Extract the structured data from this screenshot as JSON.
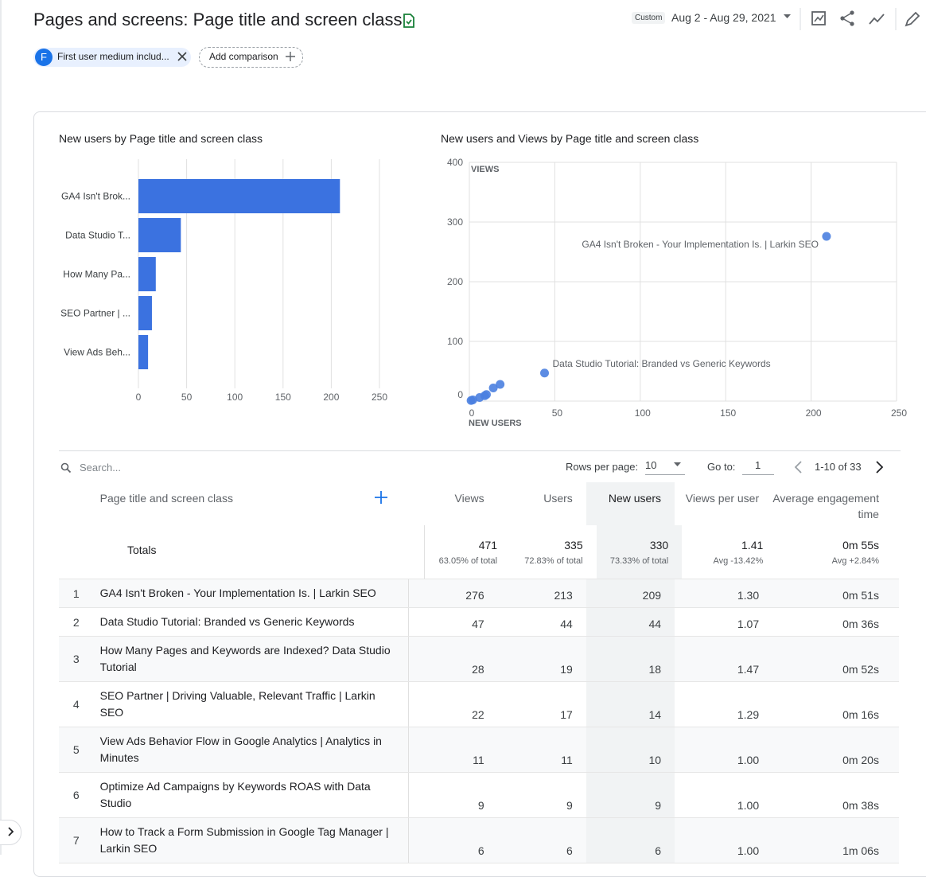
{
  "header": {
    "title": "Pages and screens: Page title and screen class",
    "date_badge": "Custom",
    "date_range": "Aug 2 - Aug 29, 2021",
    "comparison_chip": {
      "initial": "F",
      "label": "First user medium includ..."
    },
    "add_comparison": "Add comparison"
  },
  "chart_data": [
    {
      "type": "bar",
      "orientation": "horizontal",
      "title": "New users by Page title and screen class",
      "categories": [
        "GA4 Isn't Brok...",
        "Data Studio T...",
        "How Many Pa...",
        "SEO Partner | ...",
        "View Ads Beh..."
      ],
      "values": [
        209,
        44,
        18,
        14,
        10
      ],
      "color": "#3b72e0",
      "xlim": [
        0,
        250
      ],
      "xticks": [
        0,
        50,
        100,
        150,
        200,
        250
      ],
      "grid": true
    },
    {
      "type": "scatter",
      "title": "New users and Views by Page title and screen class",
      "x_label": "NEW USERS",
      "y_label": "VIEWS",
      "x": [
        209,
        44,
        18,
        14,
        10,
        9,
        6,
        2,
        1
      ],
      "values": [
        276,
        47,
        28,
        22,
        11,
        9,
        6,
        2,
        1
      ],
      "color": "#4a7fe0",
      "xlim": [
        0,
        250
      ],
      "ylim": [
        0,
        400
      ],
      "xticks": [
        0,
        50,
        100,
        150,
        200,
        250
      ],
      "yticks": [
        0,
        100,
        200,
        300,
        400
      ],
      "grid": true,
      "annotations": [
        {
          "point": 0,
          "text": "GA4 Isn't Broken - Your Implementation Is. | Larkin SEO"
        },
        {
          "point": 1,
          "text": "Data Studio Tutorial: Branded vs Generic Keywords"
        }
      ]
    }
  ],
  "table": {
    "search_placeholder": "Search...",
    "rows_per_page_label": "Rows per page:",
    "rows_per_page": "10",
    "goto_label": "Go to:",
    "goto": "1",
    "page_range": "1-10 of 33",
    "columns": [
      "Page title and screen class",
      "Views",
      "Users",
      "New users",
      "Views per user",
      "Average engagement time"
    ],
    "totals": {
      "label": "Totals",
      "cells": [
        {
          "value": 471,
          "sub": "63.05% of total"
        },
        {
          "value": 335,
          "sub": "72.83% of total"
        },
        {
          "value": 330,
          "sub": "73.33% of total"
        },
        {
          "value": "1.41",
          "sub": "Avg -13.42%"
        },
        {
          "value": "0m 55s",
          "sub": "Avg +2.84%"
        }
      ]
    },
    "rows": [
      [
        1,
        "GA4 Isn't Broken - Your Implementation Is. | Larkin SEO",
        276,
        213,
        209,
        "1.30",
        "0m 51s"
      ],
      [
        2,
        "Data Studio Tutorial: Branded vs Generic Keywords",
        47,
        44,
        44,
        "1.07",
        "0m 36s"
      ],
      [
        3,
        "How Many Pages and Keywords are Indexed? Data Studio Tutorial",
        28,
        19,
        18,
        "1.47",
        "0m 52s"
      ],
      [
        4,
        "SEO Partner | Driving Valuable, Relevant Traffic | Larkin SEO",
        22,
        17,
        14,
        "1.29",
        "0m 16s"
      ],
      [
        5,
        "View Ads Behavior Flow in Google Analytics | Analytics in Minutes",
        11,
        11,
        10,
        "1.00",
        "0m 20s"
      ],
      [
        6,
        "Optimize Ad Campaigns by Keywords ROAS with Data Studio",
        9,
        9,
        9,
        "1.00",
        "0m 38s"
      ],
      [
        7,
        "How to Track a Form Submission in Google Tag Manager | Larkin SEO",
        6,
        6,
        6,
        "1.00",
        "1m 06s"
      ]
    ]
  }
}
